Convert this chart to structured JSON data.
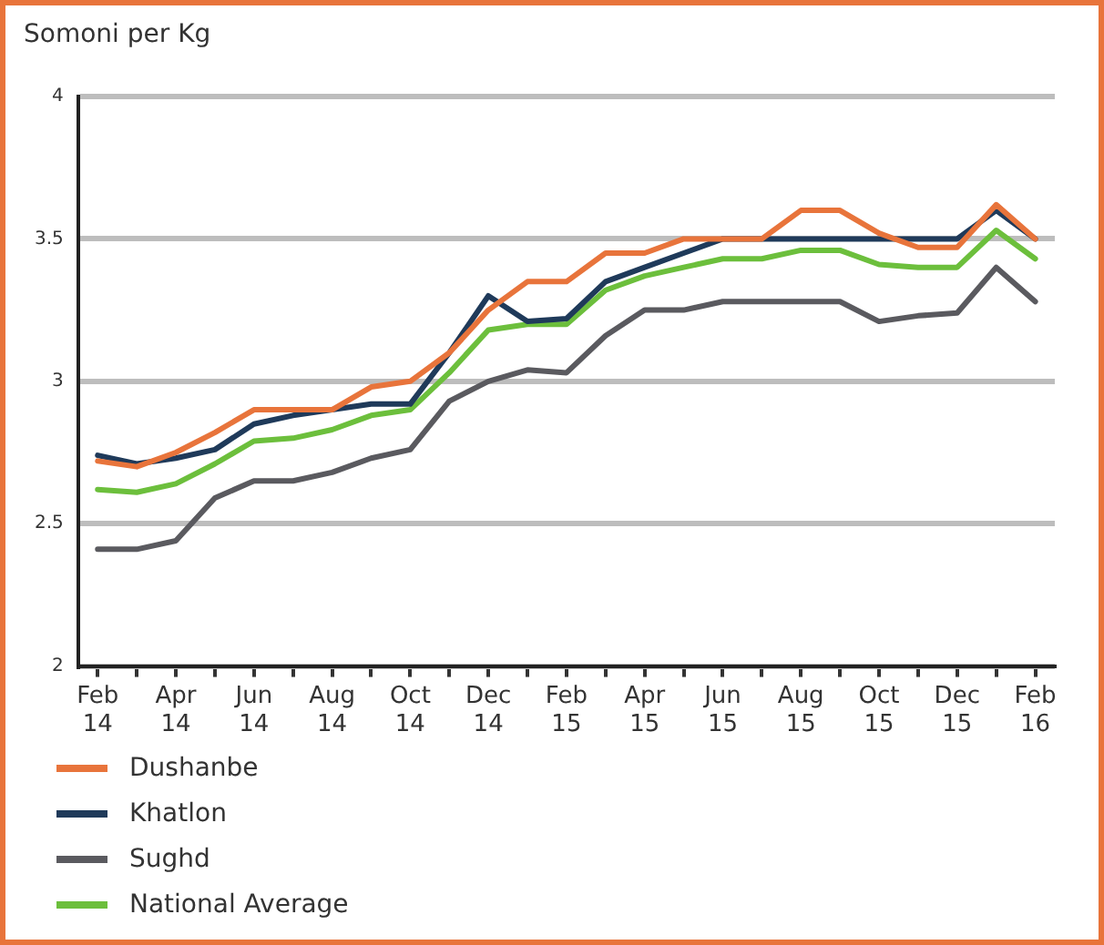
{
  "chart_data": {
    "type": "line",
    "ylabel": "Somoni per Kg",
    "categories": [
      "Feb 14",
      null,
      "Apr 14",
      null,
      "Jun 14",
      null,
      "Aug 14",
      null,
      "Oct 14",
      null,
      "Dec 14",
      null,
      "Feb 15",
      null,
      "Apr 15",
      null,
      "Jun 15",
      null,
      "Aug 15",
      null,
      "Oct 15",
      null,
      "Dec 15",
      null,
      "Feb 16"
    ],
    "series": [
      {
        "name": "Dushanbe",
        "color": "#e8743b",
        "values": [
          2.72,
          2.7,
          2.75,
          2.82,
          2.9,
          2.9,
          2.9,
          2.98,
          3.0,
          3.1,
          3.25,
          3.35,
          3.35,
          3.45,
          3.45,
          3.5,
          3.5,
          3.5,
          3.6,
          3.6,
          3.52,
          3.47,
          3.47,
          3.62,
          3.5
        ]
      },
      {
        "name": "Khatlon",
        "color": "#1f3a5a",
        "values": [
          2.74,
          2.71,
          2.73,
          2.76,
          2.85,
          2.88,
          2.9,
          2.92,
          2.92,
          3.1,
          3.3,
          3.21,
          3.22,
          3.35,
          3.4,
          3.45,
          3.5,
          3.5,
          3.5,
          3.5,
          3.5,
          3.5,
          3.5,
          3.6,
          3.5
        ]
      },
      {
        "name": "Sughd",
        "color": "#5a5a5f",
        "values": [
          2.41,
          2.41,
          2.44,
          2.59,
          2.65,
          2.65,
          2.68,
          2.73,
          2.76,
          2.93,
          3.0,
          3.04,
          3.03,
          3.16,
          3.25,
          3.25,
          3.28,
          3.28,
          3.28,
          3.28,
          3.21,
          3.23,
          3.24,
          3.4,
          3.28
        ]
      },
      {
        "name": "National Average",
        "color": "#6cbf3c",
        "values": [
          2.62,
          2.61,
          2.64,
          2.71,
          2.79,
          2.8,
          2.83,
          2.88,
          2.9,
          3.03,
          3.18,
          3.2,
          3.2,
          3.32,
          3.37,
          3.4,
          3.43,
          3.43,
          3.46,
          3.46,
          3.41,
          3.4,
          3.4,
          3.53,
          3.43
        ]
      }
    ],
    "ylim": [
      2,
      4
    ],
    "yticks": [
      2,
      2.5,
      3,
      3.5,
      4
    ],
    "grid": "y",
    "legend": "bottom",
    "marker": "none",
    "line_style": "solid"
  }
}
